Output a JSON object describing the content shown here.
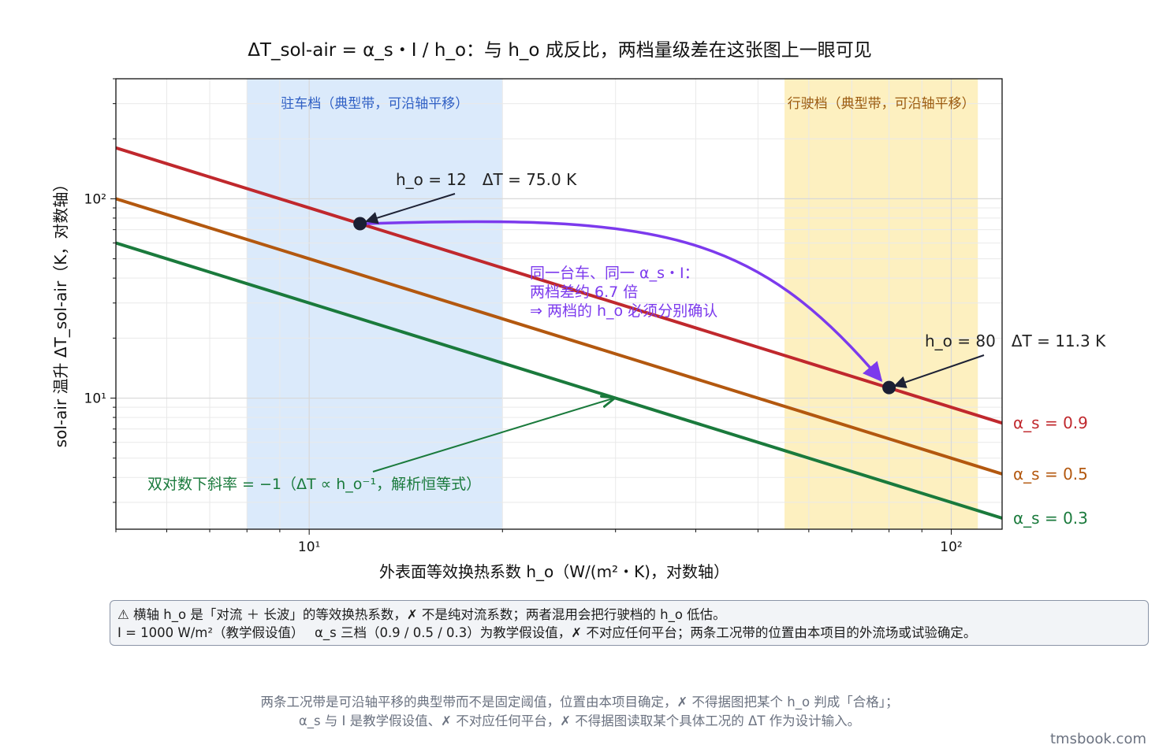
{
  "chart_data": {
    "type": "line",
    "title": "ΔT_sol-air = α_s・I / h_o：与 h_o 成反比，两档量级差在这张图上一眼可见",
    "xlabel": "外表面等效换热系数 h_o（W/(m²・K)，对数轴）",
    "ylabel": "sol-air 温升 ΔT_sol-air（K，对数轴）",
    "xscale": "log",
    "yscale": "log",
    "xlim": [
      5,
      120
    ],
    "ylim": [
      2.2,
      400
    ],
    "x_major_ticks": [
      {
        "value": 10,
        "label": "10¹"
      },
      {
        "value": 100,
        "label": "10²"
      }
    ],
    "y_major_ticks": [
      {
        "value": 10,
        "label": "10¹"
      },
      {
        "value": 100,
        "label": "10²"
      }
    ],
    "grid": true,
    "irradiance": 1000,
    "series": [
      {
        "name": "α_s = 0.9",
        "alpha": 0.9,
        "color": "#c0282d"
      },
      {
        "name": "α_s = 0.5",
        "alpha": 0.5,
        "color": "#b3580f"
      },
      {
        "name": "α_s = 0.3",
        "alpha": 0.3,
        "color": "#1a7a3c"
      }
    ],
    "bands": [
      {
        "label": "驻车档（典型带，可沿轴平移）",
        "x0": 8,
        "x1": 20,
        "fill": "#dbeafb",
        "text_color": "#2f5fc4"
      },
      {
        "label": "行驶档（典型带，可沿轴平移）",
        "x0": 55,
        "x1": 110,
        "fill": "#fdf0c0",
        "text_color": "#9a5a10"
      }
    ],
    "points": [
      {
        "x": 12,
        "y": 75.0,
        "label": "h_o = 12　ΔT = 75.0 K"
      },
      {
        "x": 80,
        "y": 11.3,
        "label": "h_o = 80　ΔT = 11.3 K"
      }
    ],
    "annotations": {
      "ratio_lines": [
        "同一台车、同一 α_s・I：",
        "两档差约 6.7 倍",
        "⇒ 两档的 h_o 必须分别确认"
      ],
      "ratio_color": "#7c3aed",
      "slope_label": "双对数下斜率 = −1（ΔT ∝ h_o⁻¹，解析恒等式）",
      "slope_color": "#1a7a3c",
      "slope_arrow_target": {
        "x": 30,
        "y": 10
      },
      "point_arrow_color": "#1e2235"
    }
  },
  "notes": {
    "line1": "⚠ 横轴 h_o 是「对流 ＋ 长波」的等效换热系数，✗ 不是纯对流系数；两者混用会把行驶档的 h_o 低估。",
    "line2": "I = 1000 W/m²（教学假设值）　 α_s 三档（0.9 / 0.5 / 0.3）为教学假设值，✗ 不对应任何平台；两条工况带的位置由本项目的外流场或试验确定。"
  },
  "footer": {
    "line1": "两条工况带是可沿轴平移的典型带而不是固定阈值，位置由本项目确定，✗ 不得据图把某个 h_o 判成「合格」；",
    "line2": "α_s 与 I 是教学假设值、✗ 不对应任何平台，✗ 不得据图读取某个具体工况的 ΔT 作为设计输入。"
  },
  "brand": "tmsbook.com"
}
